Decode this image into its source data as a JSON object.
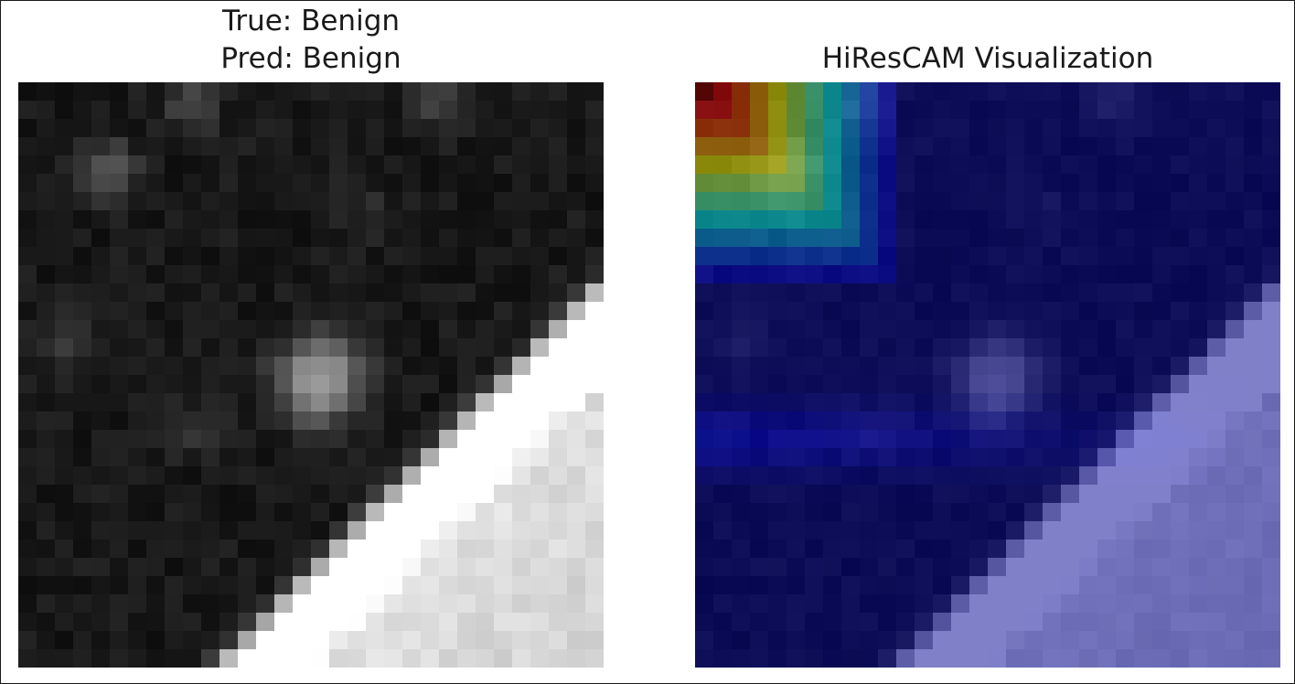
{
  "left_panel": {
    "title_line1": "True: Benign",
    "title_line2": "Pred: Benign"
  },
  "right_panel": {
    "title": "HiResCAM Visualization"
  }
}
